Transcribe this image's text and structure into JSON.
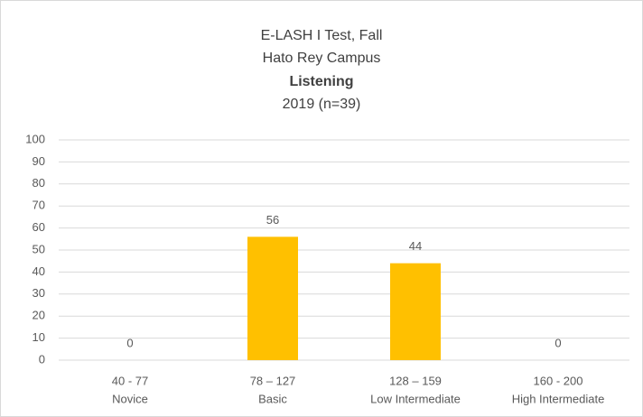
{
  "chart_data": {
    "type": "bar",
    "title": [
      "E-LASH I Test, Fall",
      "Hato Rey Campus",
      "Listening",
      "2019 (n=39)"
    ],
    "categories": [
      [
        "40 - 77",
        "Novice"
      ],
      [
        "78 – 127",
        "Basic"
      ],
      [
        "128 – 159",
        "Low Intermediate"
      ],
      [
        "160 - 200",
        "High Intermediate"
      ]
    ],
    "values": [
      0,
      56,
      44,
      0
    ],
    "color": "#ffc000",
    "ylim": [
      0,
      100
    ],
    "yticks": [
      0,
      10,
      20,
      30,
      40,
      50,
      60,
      70,
      80,
      90,
      100
    ],
    "grid": true
  }
}
